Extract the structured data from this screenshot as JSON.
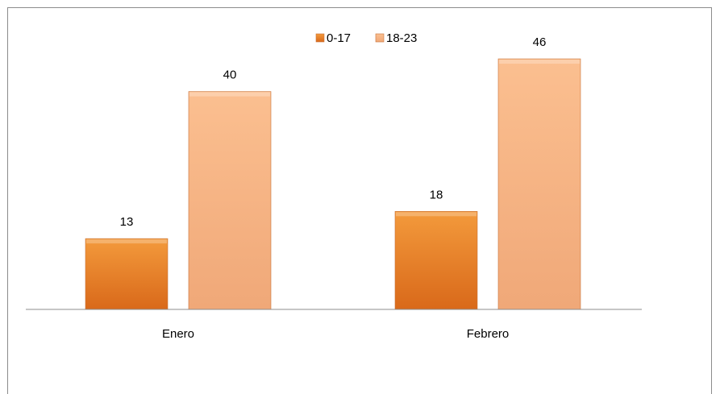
{
  "chart_data": {
    "type": "bar",
    "categories": [
      "Enero",
      "Febrero"
    ],
    "series": [
      {
        "name": "0-17",
        "values": [
          13,
          18
        ],
        "color": "#f08a2a"
      },
      {
        "name": "18-23",
        "values": [
          40,
          46
        ],
        "color": "#f7b98a"
      }
    ],
    "title": "",
    "xlabel": "",
    "ylabel": "",
    "ylim": [
      0,
      50
    ],
    "grid": false,
    "legend": "top-center",
    "data_labels": true
  }
}
